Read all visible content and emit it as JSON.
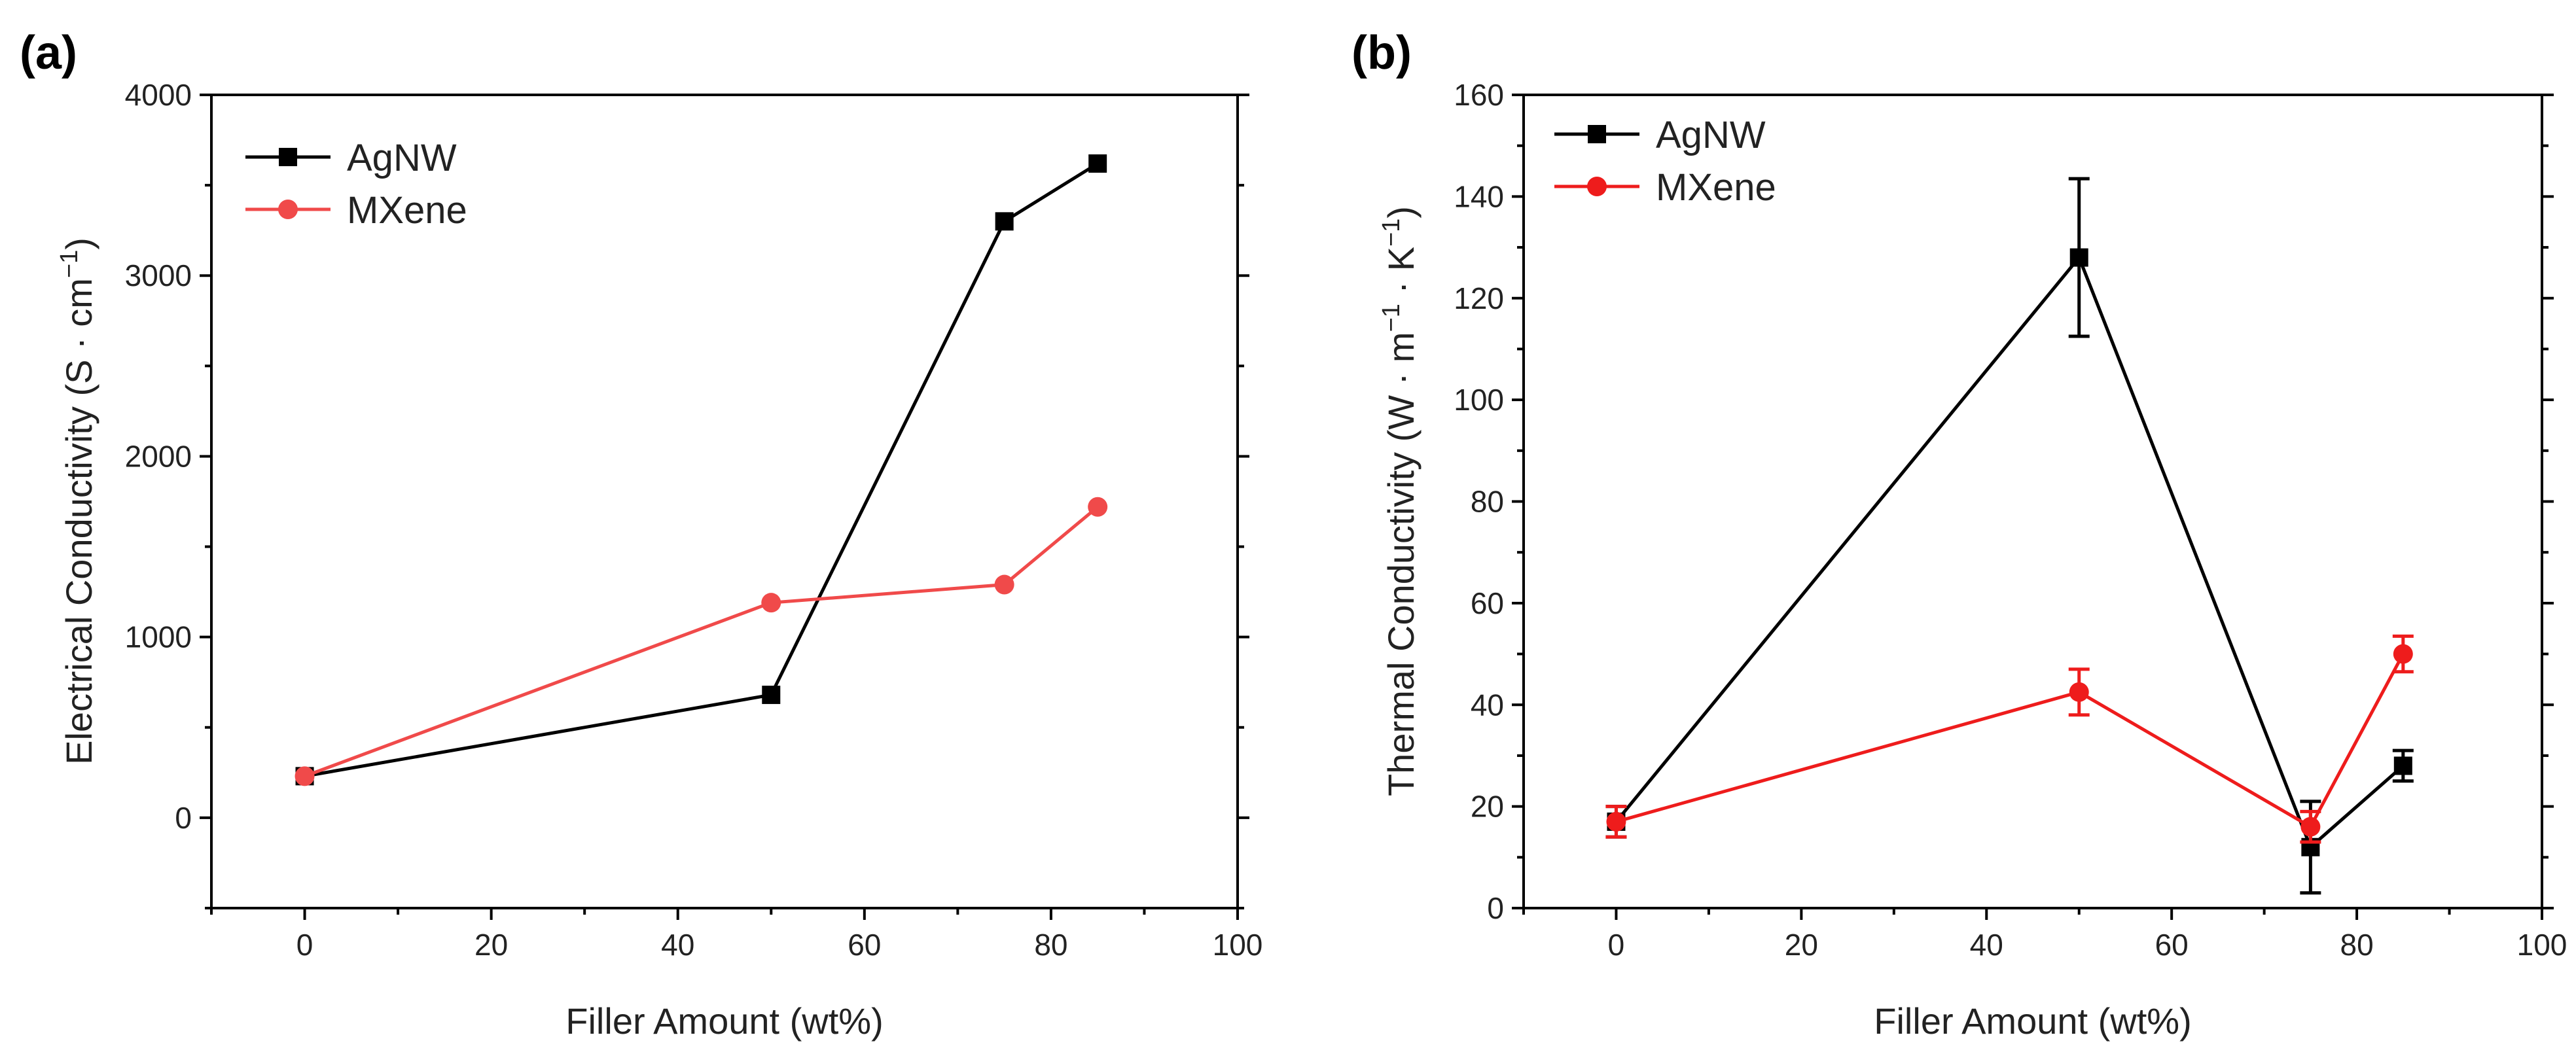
{
  "chart_data": [
    {
      "type": "line",
      "panel_label": "(a)",
      "xlabel": "Filler Amount (wt%)",
      "ylabel": "Electrical Conductivity (S · cm",
      "ylabel_sup": "−1",
      "ylabel_close": ")",
      "xlim": [
        -10,
        100
      ],
      "ylim": [
        -500,
        4000
      ],
      "xticks": [
        0,
        20,
        40,
        60,
        80,
        100
      ],
      "yticks": [
        0,
        1000,
        2000,
        3000,
        4000
      ],
      "legend_position": "top-left",
      "series": [
        {
          "name": "AgNW",
          "color": "#000000",
          "marker": "square",
          "x": [
            0,
            50,
            75,
            85
          ],
          "y": [
            230,
            680,
            3300,
            3620
          ]
        },
        {
          "name": "MXene",
          "color": "#f04a4a",
          "marker": "circle",
          "x": [
            0,
            50,
            75,
            85
          ],
          "y": [
            230,
            1190,
            1290,
            1720
          ]
        }
      ]
    },
    {
      "type": "line",
      "panel_label": "(b)",
      "xlabel": "Filler Amount (wt%)",
      "ylabel": "Thermal Conductivity (W · m",
      "ylabel_sup1": "−1",
      "ylabel_mid": " · K",
      "ylabel_sup2": "−1",
      "ylabel_close": ")",
      "xlim": [
        -10,
        100
      ],
      "ylim": [
        0,
        160
      ],
      "xticks": [
        0,
        20,
        40,
        60,
        80,
        100
      ],
      "yticks": [
        0,
        20,
        40,
        60,
        80,
        100,
        120,
        140,
        160
      ],
      "legend_position": "top-left",
      "series": [
        {
          "name": "AgNW",
          "color": "#000000",
          "marker": "square",
          "x": [
            0,
            50,
            75,
            85
          ],
          "y": [
            17,
            128,
            12,
            28
          ],
          "yerr": [
            3,
            15.5,
            9,
            3
          ]
        },
        {
          "name": "MXene",
          "color": "#ee1c1c",
          "marker": "circle",
          "x": [
            0,
            50,
            75,
            85
          ],
          "y": [
            17,
            42.5,
            16,
            50
          ],
          "yerr": [
            3,
            4.5,
            3,
            3.5
          ]
        }
      ]
    }
  ]
}
